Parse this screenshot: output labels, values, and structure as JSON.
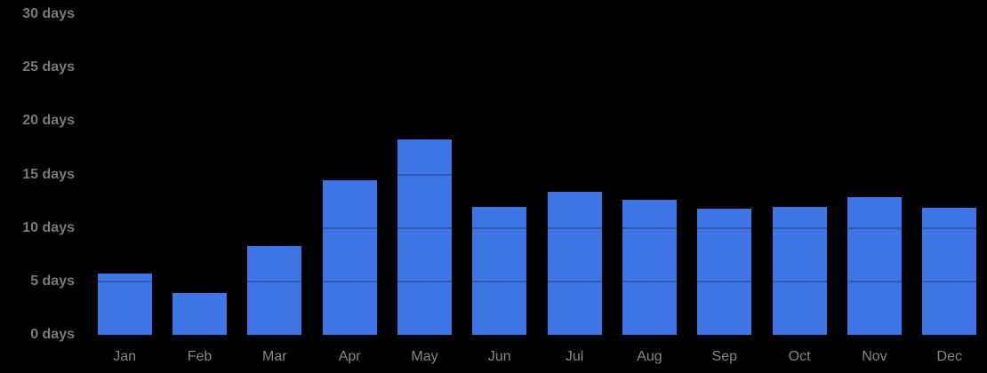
{
  "chart_data": {
    "type": "bar",
    "title": "",
    "xlabel": "",
    "ylabel": "",
    "unit": "days",
    "categories": [
      "Jan",
      "Feb",
      "Mar",
      "Apr",
      "May",
      "Jun",
      "Jul",
      "Aug",
      "Sep",
      "Oct",
      "Nov",
      "Dec"
    ],
    "values": [
      5.7,
      3.9,
      8.3,
      14.5,
      18.3,
      12.0,
      13.4,
      12.6,
      11.8,
      12.0,
      12.9,
      11.9
    ],
    "y_ticks": [
      0,
      5,
      10,
      15,
      20,
      25,
      30
    ],
    "y_tick_labels": [
      "0 days",
      "5 days",
      "10 days",
      "15 days",
      "20 days",
      "25 days",
      "30 days"
    ],
    "ylim": [
      0,
      30
    ],
    "grid": "horizontal",
    "legend": "none",
    "colors": {
      "background": "#000000",
      "bar": "#3e76e8",
      "gridline_overlay": "rgba(0,0,0,0.24)",
      "y_label_text": "#7a7a7a",
      "x_label_text": "#878787"
    }
  }
}
